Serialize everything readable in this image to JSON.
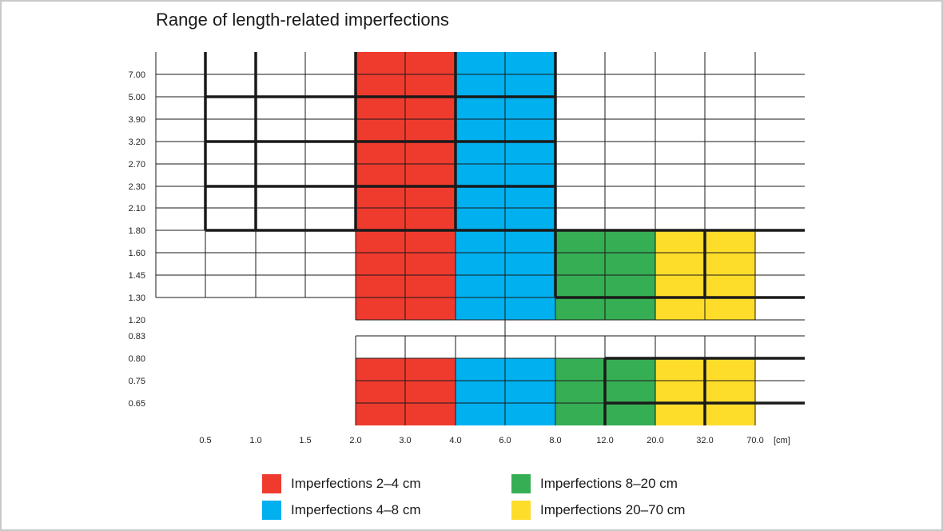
{
  "title": "Range of length-related imperfections",
  "chart_data": {
    "type": "heatmap",
    "x_ticks": [
      "0.5",
      "1.0",
      "1.5",
      "2.0",
      "3.0",
      "4.0",
      "6.0",
      "8.0",
      "12.0",
      "20.0",
      "32.0",
      "70.0"
    ],
    "x_unit": "[cm]",
    "y_ticks": [
      "7.00",
      "5.00",
      "3.90",
      "3.20",
      "2.70",
      "2.30",
      "2.10",
      "1.80",
      "1.60",
      "1.45",
      "1.30",
      "1.20",
      "0.83",
      "0.80",
      "0.75",
      "0.65"
    ],
    "colors": {
      "red": "#ee3b2e",
      "blue": "#00b0ef",
      "green": "#36ae54",
      "yellow": "#fedc2a"
    },
    "regions": [
      {
        "series": "Imperfections 2–4 cm",
        "color": "red",
        "x_range": [
          "2.0",
          "4.0"
        ],
        "y_range": [
          "1.20",
          "7.00+"
        ]
      },
      {
        "series": "Imperfections 4–8 cm",
        "color": "blue",
        "x_range": [
          "4.0",
          "8.0"
        ],
        "y_range": [
          "1.20",
          "7.00+"
        ]
      },
      {
        "series": "Imperfections 8–20 cm",
        "color": "green",
        "x_range": [
          "8.0",
          "20.0"
        ],
        "y_range": [
          "1.20",
          "1.80"
        ]
      },
      {
        "series": "Imperfections 20–70 cm",
        "color": "yellow",
        "x_range": [
          "20.0",
          "70.0"
        ],
        "y_range": [
          "1.20",
          "1.80"
        ]
      },
      {
        "series": "Imperfections 2–4 cm",
        "color": "red",
        "x_range": [
          "2.0",
          "4.0"
        ],
        "y_range": [
          "0.65",
          "0.80"
        ]
      },
      {
        "series": "Imperfections 4–8 cm",
        "color": "blue",
        "x_range": [
          "4.0",
          "8.0"
        ],
        "y_range": [
          "0.65",
          "0.80"
        ]
      },
      {
        "series": "Imperfections 8–20 cm",
        "color": "green",
        "x_range": [
          "8.0",
          "20.0"
        ],
        "y_range": [
          "0.65",
          "0.80"
        ]
      },
      {
        "series": "Imperfections 20–70 cm",
        "color": "yellow",
        "x_range": [
          "20.0",
          "70.0"
        ],
        "y_range": [
          "0.65",
          "0.80"
        ]
      }
    ]
  },
  "legend": [
    {
      "label": "Imperfections 2–4 cm",
      "color": "#ee3b2e"
    },
    {
      "label": "Imperfections 8–20 cm",
      "color": "#36ae54"
    },
    {
      "label": "Imperfections 4–8 cm",
      "color": "#00b0ef"
    },
    {
      "label": "Imperfections 20–70 cm",
      "color": "#fedc2a"
    }
  ]
}
